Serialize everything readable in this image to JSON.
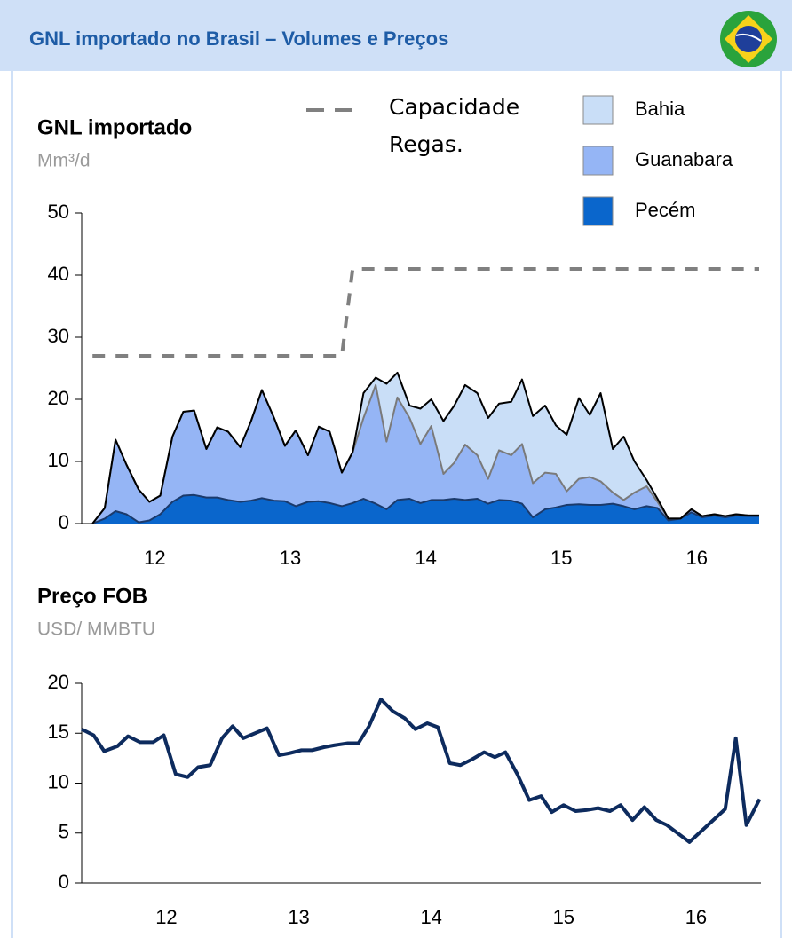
{
  "header": {
    "title": "GNL importado no Brasil – Volumes e Preços"
  },
  "chart_data": [
    {
      "type": "area",
      "stacked": true,
      "title": "GNL importado",
      "subtitle": "Mm³/d",
      "x": [
        2012.04,
        2012.13,
        2012.21,
        2012.29,
        2012.38,
        2012.46,
        2012.54,
        2012.63,
        2012.71,
        2012.79,
        2012.88,
        2012.96,
        2013.04,
        2013.13,
        2013.21,
        2013.29,
        2013.38,
        2013.46,
        2013.54,
        2013.63,
        2013.71,
        2013.79,
        2013.88,
        2013.96,
        2014.04,
        2014.13,
        2014.21,
        2014.29,
        2014.38,
        2014.46,
        2014.54,
        2014.63,
        2014.71,
        2014.79,
        2014.88,
        2014.96,
        2015.04,
        2015.13,
        2015.21,
        2015.29,
        2015.38,
        2015.46,
        2015.54,
        2015.63,
        2015.71,
        2015.79,
        2015.88,
        2015.96,
        2016.04,
        2016.13,
        2016.21,
        2016.29,
        2016.38,
        2016.46,
        2016.54,
        2016.63,
        2016.71,
        2016.79,
        2016.88,
        2016.96
      ],
      "series": [
        {
          "name": "Pecém",
          "color": "#0a66cc",
          "edge": "#1b3a6b",
          "values": [
            0,
            0.8,
            2,
            1.5,
            0.2,
            0.5,
            1.5,
            3.5,
            4.5,
            4.6,
            4.2,
            4.2,
            3.8,
            3.5,
            3.7,
            4.1,
            3.7,
            3.6,
            2.8,
            3.5,
            3.6,
            3.3,
            2.8,
            3.3,
            4,
            3.2,
            2.3,
            3.8,
            4,
            3.3,
            3.8,
            3.8,
            4,
            3.8,
            4,
            3.2,
            3.8,
            3.7,
            3.2,
            1,
            2.3,
            2.6,
            3,
            3.1,
            3,
            3,
            3.2,
            2.8,
            2.3,
            2.8,
            2.5,
            0.5,
            0.8,
            1.8,
            1,
            1.3,
            1,
            1.3,
            1.2,
            1.2
          ]
        },
        {
          "name": "Guanabara",
          "color": "#95b5f5",
          "edge": "#7a7a7a",
          "values": [
            0,
            1.7,
            11.5,
            8,
            5.3,
            3,
            3,
            10.5,
            13.5,
            13.6,
            7.8,
            11.3,
            11,
            8.8,
            12.8,
            17.4,
            13.3,
            8.9,
            12.2,
            7.5,
            12,
            11.5,
            5.4,
            8.2,
            13,
            19.1,
            10.9,
            16.5,
            13,
            9.5,
            11.9,
            4.2,
            5.8,
            8.9,
            7,
            4,
            8,
            7.3,
            9.6,
            5.5,
            5.9,
            5.4,
            2.2,
            4.1,
            4.5,
            3.8,
            1.8,
            1,
            2.7,
            3.2,
            1,
            0.3,
            0,
            0.5,
            0.2,
            0.2,
            0.2,
            0.2,
            0.1,
            0.1
          ]
        },
        {
          "name": "Bahia",
          "color": "#c9def7",
          "edge": "#000000",
          "values": [
            0,
            0,
            0,
            0,
            0,
            0,
            0,
            0,
            0,
            0,
            0,
            0,
            0,
            0,
            0,
            0,
            0,
            0,
            0,
            0,
            0,
            0,
            0,
            0,
            4,
            1.2,
            9.3,
            4,
            2,
            5.7,
            4.3,
            8.5,
            9.2,
            9.6,
            10,
            9.8,
            7.5,
            8.6,
            10.4,
            10.8,
            10.8,
            7.8,
            9.1,
            13,
            10,
            14.2,
            7,
            10.2,
            5,
            1,
            0.5,
            0,
            0,
            0,
            0,
            0,
            0,
            0,
            0,
            0
          ]
        },
        {
          "name": "Capacidade Regas.",
          "type": "line",
          "dashed": true,
          "color": "#808080",
          "values": [
            27,
            27,
            27,
            27,
            27,
            27,
            27,
            27,
            27,
            27,
            27,
            27,
            27,
            27,
            27,
            27,
            27,
            27,
            27,
            27,
            27,
            27,
            27,
            41,
            41,
            41,
            41,
            41,
            41,
            41,
            41,
            41,
            41,
            41,
            41,
            41,
            41,
            41,
            41,
            41,
            41,
            41,
            41,
            41,
            41,
            41,
            41,
            41,
            41,
            41,
            41,
            41,
            41,
            41,
            41,
            41,
            41,
            41,
            41,
            41
          ]
        }
      ],
      "xlim": [
        2011.96,
        2016.96
      ],
      "xticks": [
        {
          "value": 2012.5,
          "label": "12"
        },
        {
          "value": 2013.5,
          "label": "13"
        },
        {
          "value": 2014.5,
          "label": "14"
        },
        {
          "value": 2015.5,
          "label": "15"
        },
        {
          "value": 2016.5,
          "label": "16"
        }
      ],
      "ylim": [
        0,
        50
      ],
      "yticks": [
        0,
        10,
        20,
        30,
        40,
        50
      ],
      "grid": false
    },
    {
      "type": "line",
      "title": "Preço FOB",
      "subtitle": "USD/ MMBTU",
      "color": "#0d2b5e",
      "x": [
        2011.86,
        2011.95,
        2012.03,
        2012.13,
        2012.21,
        2012.3,
        2012.4,
        2012.48,
        2012.57,
        2012.66,
        2012.74,
        2012.83,
        2012.92,
        2013.0,
        2013.08,
        2013.17,
        2013.26,
        2013.35,
        2013.43,
        2013.52,
        2013.6,
        2013.69,
        2013.77,
        2013.87,
        2013.95,
        2014.03,
        2014.12,
        2014.21,
        2014.3,
        2014.38,
        2014.47,
        2014.55,
        2014.64,
        2014.72,
        2014.81,
        2014.9,
        2014.98,
        2015.06,
        2015.15,
        2015.24,
        2015.33,
        2015.41,
        2015.5,
        2015.59,
        2015.67,
        2015.76,
        2015.85,
        2015.93,
        2016.02,
        2016.11,
        2016.2,
        2016.28,
        2016.45,
        2016.72,
        2016.8,
        2016.88,
        2016.98
      ],
      "values": [
        15.4,
        14.8,
        13.2,
        13.7,
        14.7,
        14.1,
        14.1,
        14.8,
        10.9,
        10.6,
        11.6,
        11.8,
        14.5,
        15.7,
        14.5,
        15.0,
        15.5,
        12.8,
        13.0,
        13.3,
        13.3,
        13.6,
        13.8,
        14.0,
        14.0,
        15.7,
        18.4,
        17.2,
        16.5,
        15.4,
        16.0,
        15.6,
        12.0,
        11.8,
        12.4,
        13.1,
        12.6,
        13.1,
        10.9,
        8.3,
        8.7,
        7.1,
        7.8,
        7.2,
        7.3,
        7.5,
        7.2,
        7.8,
        6.3,
        7.6,
        6.3,
        5.8,
        4.1,
        7.4,
        14.5,
        5.8,
        8.4
      ],
      "xlim": [
        2011.86,
        2016.99
      ],
      "xticks": [
        {
          "value": 2012.5,
          "label": "12"
        },
        {
          "value": 2013.5,
          "label": "13"
        },
        {
          "value": 2014.5,
          "label": "14"
        },
        {
          "value": 2015.5,
          "label": "15"
        },
        {
          "value": 2016.5,
          "label": "16"
        }
      ],
      "ylim": [
        0,
        20
      ],
      "yticks": [
        0,
        5,
        10,
        15,
        20
      ],
      "grid": false
    }
  ]
}
